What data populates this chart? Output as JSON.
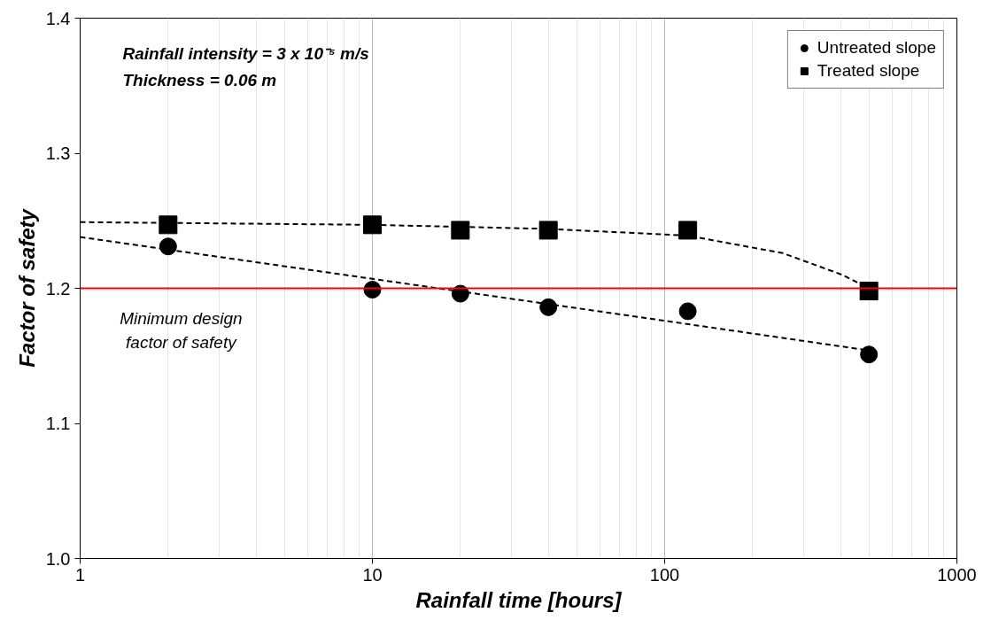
{
  "chart_data": {
    "type": "scatter",
    "xlabel": "Rainfall time [hours]",
    "ylabel": "Factor of safety",
    "annotations": [
      "Rainfall intensity = 3 x 10⁻⁵ m/s",
      "Thickness = 0.06 m"
    ],
    "log": "x",
    "xlim": [
      1,
      1000
    ],
    "xticks": [
      1,
      10,
      100,
      1000
    ],
    "ylim": [
      1.0,
      1.4
    ],
    "yticks": [
      {
        "value": 1.0,
        "label": "1.0"
      },
      1.1,
      1.2,
      1.3,
      {
        "value": 1.4,
        "label": "1.4"
      }
    ],
    "grid": "x",
    "legend": "top right",
    "ref_lines": [
      {
        "axis": "y",
        "value": 1.2,
        "label": "Minimum design factor of safety",
        "color": "#ff0000"
      }
    ],
    "series": [
      {
        "name": "Untreated slope",
        "color": "#000000",
        "marker": "circle",
        "x": [
          2,
          10,
          20,
          40,
          120,
          500
        ],
        "values": [
          1.231,
          1.199,
          1.196,
          1.186,
          1.183,
          1.151
        ]
      },
      {
        "name": "Treated slope",
        "color": "#000000",
        "marker": "square",
        "x": [
          2,
          10,
          20,
          40,
          120,
          500
        ],
        "values": [
          1.247,
          1.247,
          1.243,
          1.243,
          1.243,
          1.198
        ]
      },
      {
        "type": "line",
        "color": "#000000",
        "line_style": "dashed",
        "marker": "none",
        "x": [
          1,
          10,
          100,
          500
        ],
        "values": [
          1.238,
          1.207,
          1.176,
          1.154
        ]
      },
      {
        "type": "line",
        "color": "#000000",
        "line_style": "dashed",
        "marker": "none",
        "x": [
          1,
          10,
          40,
          120,
          254,
          405,
          500
        ],
        "values": [
          1.249,
          1.247,
          1.244,
          1.239,
          1.226,
          1.21,
          1.2
        ]
      }
    ]
  }
}
